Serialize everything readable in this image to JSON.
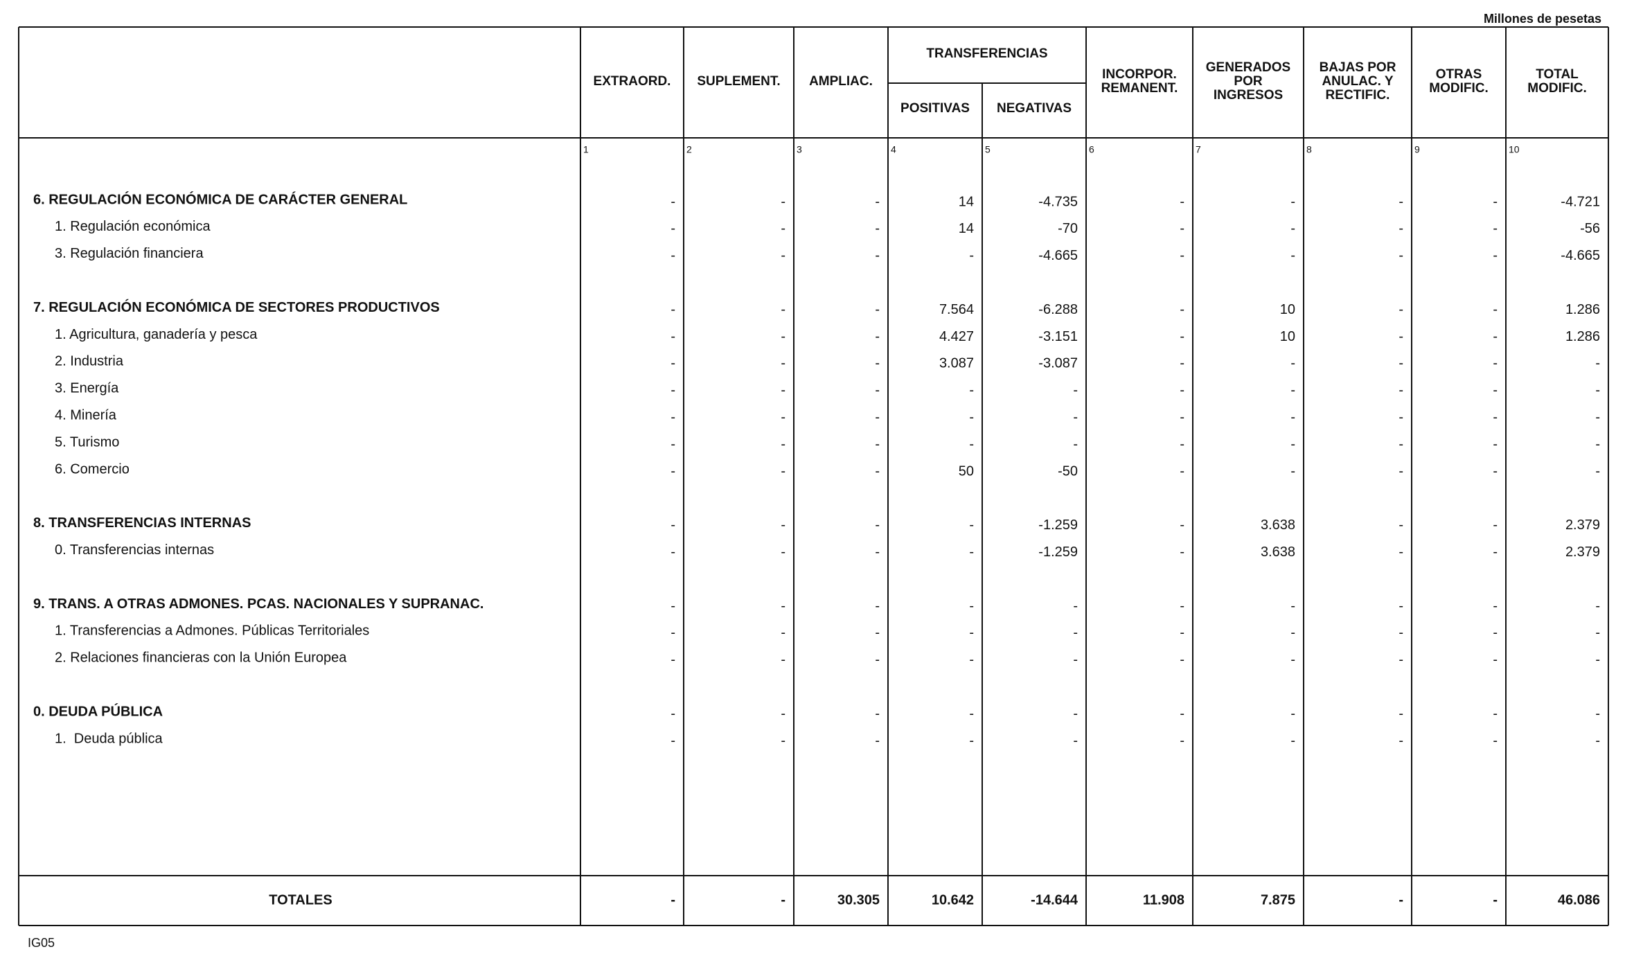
{
  "header": {
    "unit": "Millones de pesetas",
    "group": "TRANSFERENCIAS",
    "columns": [
      {
        "lines": [
          "EXTRAORD."
        ]
      },
      {
        "lines": [
          "SUPLEMENT."
        ]
      },
      {
        "lines": [
          "AMPLIAC."
        ]
      },
      {
        "lines": [
          "POSITIVAS"
        ]
      },
      {
        "lines": [
          "NEGATIVAS"
        ]
      },
      {
        "lines": [
          "INCORPOR.",
          "REMANENT."
        ]
      },
      {
        "lines": [
          "GENERADOS",
          "POR",
          "INGRESOS"
        ]
      },
      {
        "lines": [
          "BAJAS POR",
          "ANULAC. Y",
          "RECTIFIC."
        ]
      },
      {
        "lines": [
          "OTRAS",
          "MODIFIC."
        ]
      },
      {
        "lines": [
          "TOTAL",
          "MODIFIC."
        ]
      }
    ],
    "numbers": [
      1,
      2,
      3,
      4,
      5,
      6,
      7,
      8,
      9,
      10
    ]
  },
  "sections": [
    {
      "title": "6. REGULACIÓN ECONÓMICA DE CARÁCTER GENERAL",
      "values": [
        "-",
        "-",
        "-",
        "14",
        "-4.735",
        "-",
        "-",
        "-",
        "-",
        "-4.721"
      ],
      "rows": [
        {
          "label": "1. Regulación económica",
          "values": [
            "-",
            "-",
            "-",
            "14",
            "-70",
            "-",
            "-",
            "-",
            "-",
            "-56"
          ]
        },
        {
          "label": "3. Regulación financiera",
          "values": [
            "-",
            "-",
            "-",
            "-",
            "-4.665",
            "-",
            "-",
            "-",
            "-",
            "-4.665"
          ]
        }
      ]
    },
    {
      "title": "7. REGULACIÓN ECONÓMICA DE SECTORES PRODUCTIVOS",
      "values": [
        "-",
        "-",
        "-",
        "7.564",
        "-6.288",
        "-",
        "10",
        "-",
        "-",
        "1.286"
      ],
      "rows": [
        {
          "label": "1. Agricultura, ganadería y pesca",
          "values": [
            "-",
            "-",
            "-",
            "4.427",
            "-3.151",
            "-",
            "10",
            "-",
            "-",
            "1.286"
          ]
        },
        {
          "label": "2. Industria",
          "values": [
            "-",
            "-",
            "-",
            "3.087",
            "-3.087",
            "-",
            "-",
            "-",
            "-",
            "-"
          ]
        },
        {
          "label": "3. Energía",
          "values": [
            "-",
            "-",
            "-",
            "-",
            "-",
            "-",
            "-",
            "-",
            "-",
            "-"
          ]
        },
        {
          "label": "4. Minería",
          "values": [
            "-",
            "-",
            "-",
            "-",
            "-",
            "-",
            "-",
            "-",
            "-",
            "-"
          ]
        },
        {
          "label": "5. Turismo",
          "values": [
            "-",
            "-",
            "-",
            "-",
            "-",
            "-",
            "-",
            "-",
            "-",
            "-"
          ]
        },
        {
          "label": "6. Comercio",
          "values": [
            "-",
            "-",
            "-",
            "50",
            "-50",
            "-",
            "-",
            "-",
            "-",
            "-"
          ]
        }
      ]
    },
    {
      "title": "8. TRANSFERENCIAS INTERNAS",
      "values": [
        "-",
        "-",
        "-",
        "-",
        "-1.259",
        "-",
        "3.638",
        "-",
        "-",
        "2.379"
      ],
      "rows": [
        {
          "label": "0. Transferencias internas",
          "values": [
            "-",
            "-",
            "-",
            "-",
            "-1.259",
            "-",
            "3.638",
            "-",
            "-",
            "2.379"
          ]
        }
      ]
    },
    {
      "title": "9. TRANS. A OTRAS ADMONES. PCAS. NACIONALES Y SUPRANAC.",
      "values": [
        "-",
        "-",
        "-",
        "-",
        "-",
        "-",
        "-",
        "-",
        "-",
        "-"
      ],
      "rows": [
        {
          "label": "1. Transferencias a Admones. Públicas Territoriales",
          "values": [
            "-",
            "-",
            "-",
            "-",
            "-",
            "-",
            "-",
            "-",
            "-",
            "-"
          ]
        },
        {
          "label": "2. Relaciones financieras con la Unión Europea",
          "values": [
            "-",
            "-",
            "-",
            "-",
            "-",
            "-",
            "-",
            "-",
            "-",
            "-"
          ]
        }
      ]
    },
    {
      "title": "0. DEUDA PÚBLICA",
      "values": [
        "-",
        "-",
        "-",
        "-",
        "-",
        "-",
        "-",
        "-",
        "-",
        "-"
      ],
      "rows": [
        {
          "label": "1.  Deuda pública",
          "values": [
            "-",
            "-",
            "-",
            "-",
            "-",
            "-",
            "-",
            "-",
            "-",
            "-"
          ]
        }
      ]
    }
  ],
  "totals": {
    "label": "TOTALES",
    "values": [
      "-",
      "-",
      "30.305",
      "10.642",
      "-14.644",
      "11.908",
      "7.875",
      "-",
      "-",
      "46.086"
    ]
  },
  "footer": "IG05"
}
